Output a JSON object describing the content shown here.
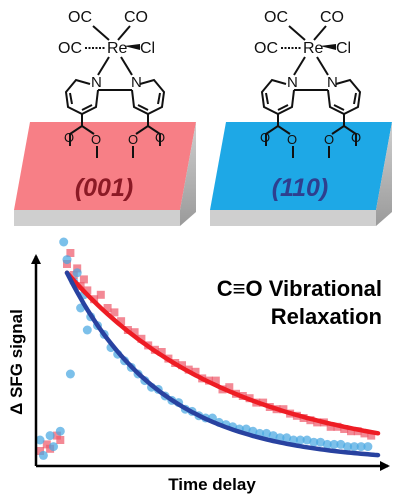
{
  "molecule": {
    "ligands": [
      "OC",
      "CO",
      "OC",
      "Cl"
    ],
    "metal": "Re",
    "ring_atoms": [
      "N",
      "N"
    ]
  },
  "surfaces": [
    {
      "facet": "(001)",
      "color": "#f77f86",
      "label_color": "#8b1a25"
    },
    {
      "facet": "(110)",
      "color": "#1ea8e6",
      "label_color": "#2e3f8f"
    }
  ],
  "plot": {
    "title_line1": "C≡O Vibrational",
    "title_line2": "Relaxation"
  },
  "chart_data": {
    "type": "scatter",
    "xlabel": "Time delay",
    "ylabel": "Δ SFG signal",
    "x_ticks": "none",
    "y_ticks": "none",
    "grid": false,
    "series": [
      {
        "color": "#ef5b6c",
        "points": [
          [
            0.0,
            0.05
          ],
          [
            0.02,
            0.08
          ],
          [
            0.03,
            0.06
          ],
          [
            0.05,
            0.12
          ],
          [
            0.06,
            0.1
          ],
          [
            0.08,
            0.9
          ],
          [
            0.09,
            0.95
          ],
          [
            0.1,
            0.85
          ],
          [
            0.11,
            0.88
          ],
          [
            0.12,
            0.8
          ],
          [
            0.13,
            0.83
          ],
          [
            0.14,
            0.78
          ],
          [
            0.16,
            0.74
          ],
          [
            0.18,
            0.76
          ],
          [
            0.2,
            0.7
          ],
          [
            0.22,
            0.68
          ],
          [
            0.24,
            0.64
          ],
          [
            0.26,
            0.6
          ],
          [
            0.28,
            0.59
          ],
          [
            0.3,
            0.56
          ],
          [
            0.32,
            0.53
          ],
          [
            0.34,
            0.51
          ],
          [
            0.36,
            0.5
          ],
          [
            0.38,
            0.47
          ],
          [
            0.4,
            0.45
          ],
          [
            0.42,
            0.44
          ],
          [
            0.44,
            0.42
          ],
          [
            0.46,
            0.41
          ],
          [
            0.48,
            0.38
          ],
          [
            0.5,
            0.37
          ],
          [
            0.52,
            0.37
          ],
          [
            0.54,
            0.33
          ],
          [
            0.56,
            0.34
          ],
          [
            0.58,
            0.31
          ],
          [
            0.6,
            0.3
          ],
          [
            0.62,
            0.29
          ],
          [
            0.64,
            0.27
          ],
          [
            0.66,
            0.27
          ],
          [
            0.68,
            0.25
          ],
          [
            0.7,
            0.24
          ],
          [
            0.72,
            0.24
          ],
          [
            0.74,
            0.22
          ],
          [
            0.76,
            0.21
          ],
          [
            0.78,
            0.2
          ],
          [
            0.8,
            0.19
          ],
          [
            0.82,
            0.18
          ],
          [
            0.84,
            0.18
          ],
          [
            0.86,
            0.16
          ],
          [
            0.88,
            0.16
          ],
          [
            0.9,
            0.15
          ],
          [
            0.92,
            0.14
          ],
          [
            0.94,
            0.14
          ],
          [
            0.96,
            0.13
          ],
          [
            0.98,
            0.12
          ]
        ]
      },
      {
        "color": "#4aa8e2",
        "points": [
          [
            0.0,
            0.1
          ],
          [
            0.01,
            0.03
          ],
          [
            0.03,
            0.12
          ],
          [
            0.04,
            0.07
          ],
          [
            0.06,
            0.14
          ],
          [
            0.07,
            1.0
          ],
          [
            0.08,
            0.92
          ],
          [
            0.09,
            0.4
          ],
          [
            0.1,
            0.82
          ],
          [
            0.11,
            0.86
          ],
          [
            0.12,
            0.7
          ],
          [
            0.13,
            0.76
          ],
          [
            0.14,
            0.6
          ],
          [
            0.15,
            0.66
          ],
          [
            0.17,
            0.62
          ],
          [
            0.19,
            0.58
          ],
          [
            0.21,
            0.52
          ],
          [
            0.23,
            0.49
          ],
          [
            0.25,
            0.46
          ],
          [
            0.27,
            0.43
          ],
          [
            0.29,
            0.4
          ],
          [
            0.31,
            0.37
          ],
          [
            0.33,
            0.34
          ],
          [
            0.35,
            0.33
          ],
          [
            0.37,
            0.3
          ],
          [
            0.39,
            0.28
          ],
          [
            0.41,
            0.27
          ],
          [
            0.43,
            0.24
          ],
          [
            0.45,
            0.23
          ],
          [
            0.47,
            0.21
          ],
          [
            0.49,
            0.2
          ],
          [
            0.51,
            0.2
          ],
          [
            0.53,
            0.18
          ],
          [
            0.55,
            0.17
          ],
          [
            0.57,
            0.16
          ],
          [
            0.59,
            0.15
          ],
          [
            0.61,
            0.15
          ],
          [
            0.63,
            0.14
          ],
          [
            0.65,
            0.13
          ],
          [
            0.67,
            0.13
          ],
          [
            0.69,
            0.12
          ],
          [
            0.71,
            0.11
          ],
          [
            0.73,
            0.11
          ],
          [
            0.75,
            0.1
          ],
          [
            0.77,
            0.1
          ],
          [
            0.79,
            0.1
          ],
          [
            0.81,
            0.09
          ],
          [
            0.83,
            0.09
          ],
          [
            0.85,
            0.08
          ],
          [
            0.87,
            0.08
          ],
          [
            0.89,
            0.08
          ],
          [
            0.91,
            0.07
          ],
          [
            0.93,
            0.07
          ],
          [
            0.95,
            0.07
          ],
          [
            0.97,
            0.07
          ]
        ]
      }
    ],
    "fits": [
      {
        "color": "#ee1c24",
        "form": "exponential",
        "x_start": 0.08,
        "y0": 0.86,
        "k": 2.05
      },
      {
        "color": "#2842a0",
        "form": "exponential",
        "x_start": 0.08,
        "y0": 0.86,
        "k": 3.6
      }
    ]
  }
}
